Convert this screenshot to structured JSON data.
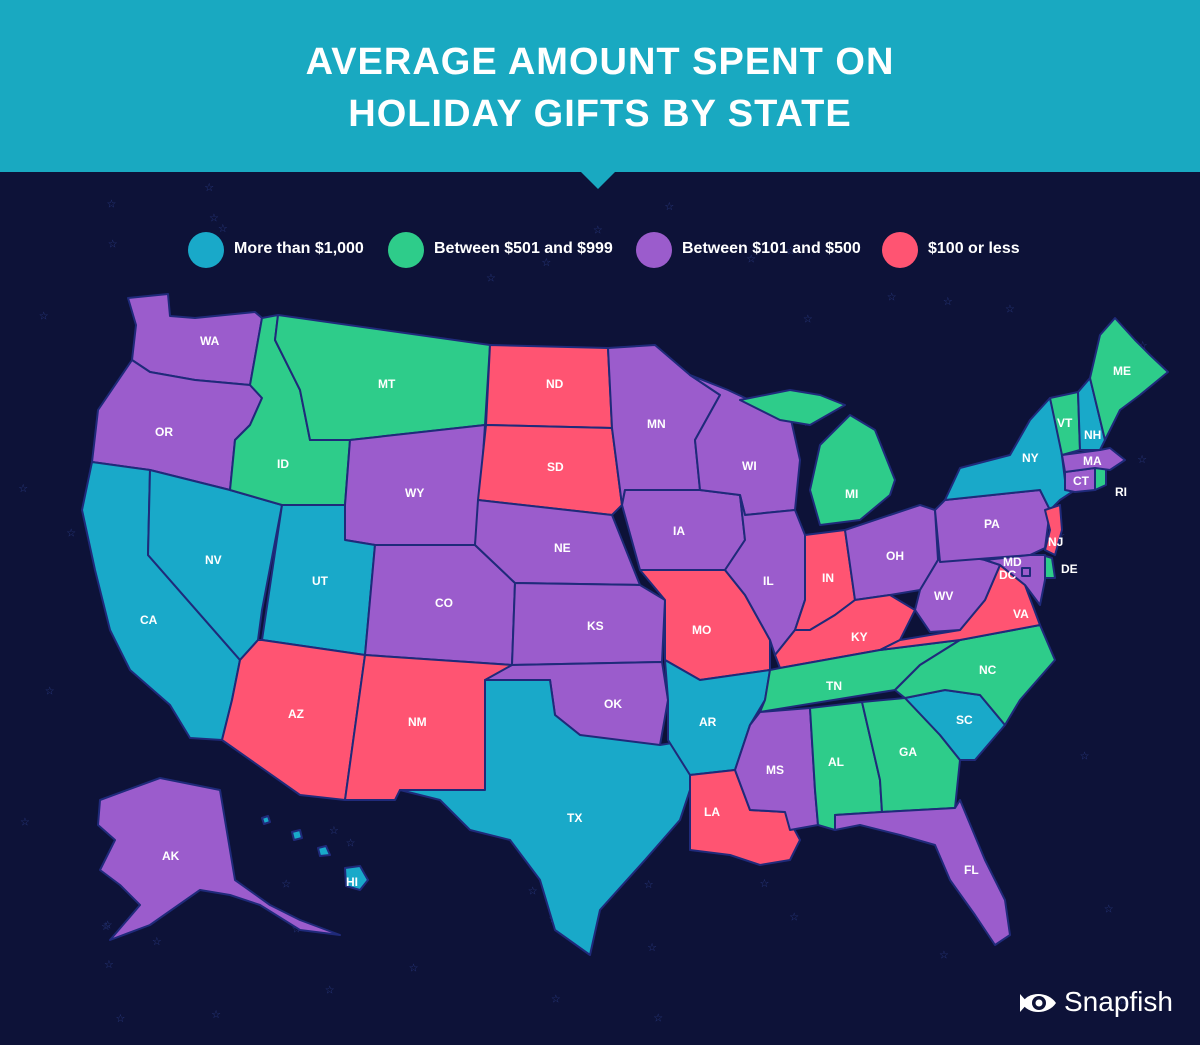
{
  "title": {
    "line1": "AVERAGE AMOUNT SPENT ON",
    "line2": "HOLIDAY GIFTS BY STATE"
  },
  "legend": [
    {
      "label": "More than $1,000",
      "color": "#19a9c9"
    },
    {
      "label": "Between $501 and $999",
      "color": "#2ecc8a"
    },
    {
      "label": "Between $101 and $500",
      "color": "#9b5ccc"
    },
    {
      "label": "$100 or less",
      "color": "#ff5472"
    }
  ],
  "states": {
    "WA": {
      "label": "WA",
      "category": 2
    },
    "OR": {
      "label": "OR",
      "category": 2
    },
    "CA": {
      "label": "CA",
      "category": 0
    },
    "NV": {
      "label": "NV",
      "category": 0
    },
    "ID": {
      "label": "ID",
      "category": 1
    },
    "MT": {
      "label": "MT",
      "category": 1
    },
    "WY": {
      "label": "WY",
      "category": 2
    },
    "UT": {
      "label": "UT",
      "category": 0
    },
    "AZ": {
      "label": "AZ",
      "category": 3
    },
    "CO": {
      "label": "CO",
      "category": 2
    },
    "NM": {
      "label": "NM",
      "category": 3
    },
    "ND": {
      "label": "ND",
      "category": 3
    },
    "SD": {
      "label": "SD",
      "category": 3
    },
    "NE": {
      "label": "NE",
      "category": 2
    },
    "KS": {
      "label": "KS",
      "category": 2
    },
    "OK": {
      "label": "OK",
      "category": 2
    },
    "TX": {
      "label": "TX",
      "category": 0
    },
    "MN": {
      "label": "MN",
      "category": 2
    },
    "IA": {
      "label": "IA",
      "category": 2
    },
    "MO": {
      "label": "MO",
      "category": 3
    },
    "AR": {
      "label": "AR",
      "category": 0
    },
    "LA": {
      "label": "LA",
      "category": 3
    },
    "WI": {
      "label": "WI",
      "category": 2
    },
    "IL": {
      "label": "IL",
      "category": 2
    },
    "MI": {
      "label": "MI",
      "category": 1
    },
    "IN": {
      "label": "IN",
      "category": 3
    },
    "OH": {
      "label": "OH",
      "category": 2
    },
    "KY": {
      "label": "KY",
      "category": 3
    },
    "TN": {
      "label": "TN",
      "category": 1
    },
    "MS": {
      "label": "MS",
      "category": 2
    },
    "AL": {
      "label": "AL",
      "category": 1
    },
    "GA": {
      "label": "GA",
      "category": 1
    },
    "FL": {
      "label": "FL",
      "category": 2
    },
    "SC": {
      "label": "SC",
      "category": 0
    },
    "NC": {
      "label": "NC",
      "category": 1
    },
    "VA": {
      "label": "VA",
      "category": 3
    },
    "WV": {
      "label": "WV",
      "category": 2
    },
    "PA": {
      "label": "PA",
      "category": 2
    },
    "NY": {
      "label": "NY",
      "category": 0
    },
    "NJ": {
      "label": "NJ",
      "category": 3
    },
    "DE": {
      "label": "DE",
      "category": 1
    },
    "MD": {
      "label": "MD",
      "category": 2
    },
    "DC": {
      "label": "DC",
      "category": 2
    },
    "CT": {
      "label": "CT",
      "category": 2
    },
    "RI": {
      "label": "RI",
      "category": 1
    },
    "MA": {
      "label": "MA",
      "category": 2
    },
    "VT": {
      "label": "VT",
      "category": 1
    },
    "NH": {
      "label": "NH",
      "category": 0
    },
    "ME": {
      "label": "ME",
      "category": 1
    },
    "AK": {
      "label": "AK",
      "category": 2
    },
    "HI": {
      "label": "HI",
      "category": 0
    }
  },
  "brand": {
    "name": "Snapfish",
    "icon": "fish-eye-logo-icon"
  }
}
